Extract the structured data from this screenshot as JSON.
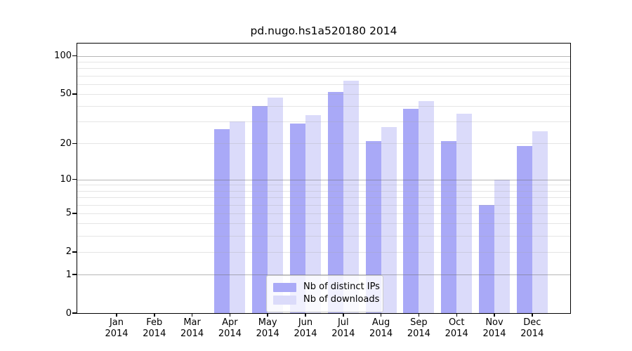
{
  "chart_data": {
    "type": "bar",
    "title": "pd.nugo.hs1a520180 2014",
    "categories": [
      "Jan",
      "Feb",
      "Mar",
      "Apr",
      "May",
      "Jun",
      "Jul",
      "Aug",
      "Sep",
      "Oct",
      "Nov",
      "Dec"
    ],
    "category_year": "2014",
    "series": [
      {
        "name": "Nb of distinct IPs",
        "color": "#a9a9f7",
        "values": [
          0,
          0,
          0,
          26,
          40,
          29,
          52,
          21,
          38,
          21,
          6,
          19
        ]
      },
      {
        "name": "Nb of downloads",
        "color": "#dbdbfa",
        "values": [
          0,
          0,
          0,
          30,
          47,
          34,
          64,
          27,
          44,
          35,
          10,
          25
        ]
      }
    ],
    "xlabel": "",
    "ylabel": "",
    "scale": "log1p",
    "ylim": [
      0,
      125
    ],
    "yticks": [
      0,
      1,
      2,
      5,
      10,
      20,
      50,
      100
    ],
    "grid_minor": [
      2,
      3,
      4,
      5,
      6,
      7,
      8,
      9,
      20,
      30,
      40,
      50,
      60,
      70,
      80,
      90
    ],
    "grid_major": [
      1,
      10,
      100
    ],
    "grid": "on",
    "legend_position": "lower center",
    "spine_color": "#000000",
    "background_color": "#ffffff"
  }
}
